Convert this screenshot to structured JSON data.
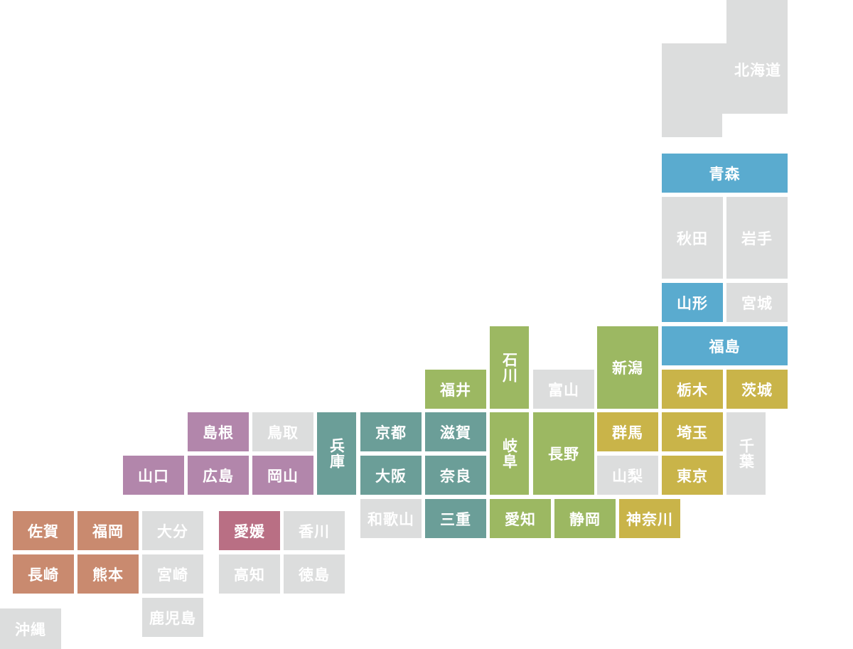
{
  "prefectures": [
    "北海道",
    "青森",
    "秋田",
    "岩手",
    "山形",
    "宮城",
    "福島",
    "石川",
    "新潟",
    "福井",
    "富山",
    "栃木",
    "茨城",
    "島根",
    "鳥取",
    "兵庫",
    "京都",
    "滋賀",
    "岐阜",
    "長野",
    "群馬",
    "埼玉",
    "千葉",
    "山口",
    "広島",
    "岡山",
    "大阪",
    "奈良",
    "山梨",
    "東京",
    "和歌山",
    "三重",
    "愛知",
    "静岡",
    "神奈川",
    "佐賀",
    "福岡",
    "大分",
    "愛媛",
    "香川",
    "長崎",
    "熊本",
    "宮崎",
    "高知",
    "徳島",
    "鹿児島",
    "沖縄"
  ]
}
